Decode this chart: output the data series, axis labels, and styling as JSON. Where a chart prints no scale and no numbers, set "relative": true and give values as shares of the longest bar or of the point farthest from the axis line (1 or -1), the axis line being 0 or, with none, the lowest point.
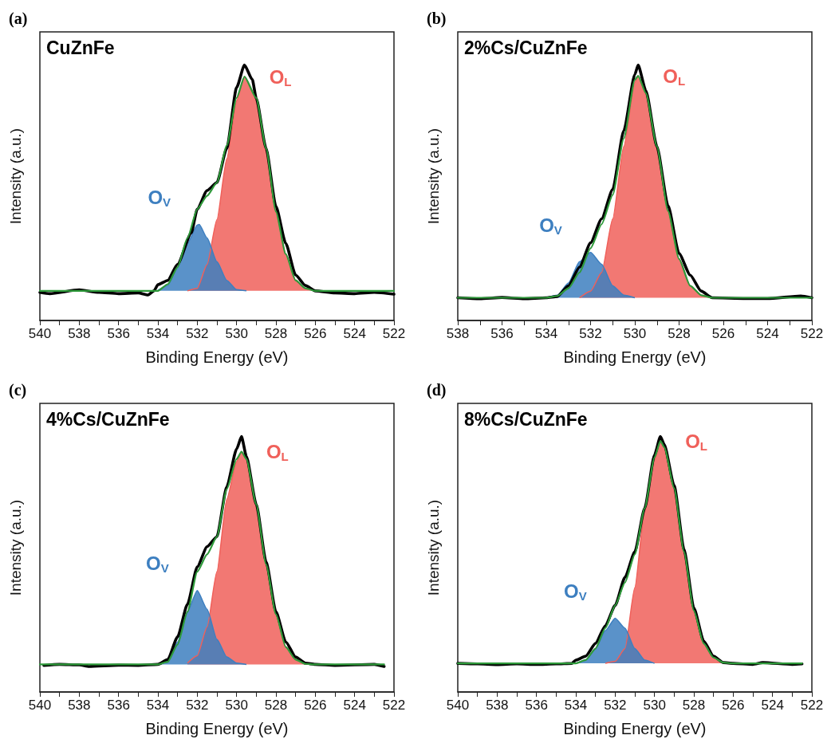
{
  "chart_data": [
    {
      "type": "line",
      "title": "(a)",
      "xlabel": "Binding Energy (eV)",
      "ylabel": "Intensity (a.u.)",
      "relative": true,
      "marker": "none",
      "line_style": "solid",
      "grid": false,
      "xlim": [
        540,
        522
      ],
      "xticks": [
        540,
        {
          "value": 539,
          "label": null
        },
        538,
        {
          "value": 537,
          "label": null
        },
        536,
        {
          "value": 535,
          "label": null
        },
        534,
        {
          "value": 533,
          "label": null
        },
        532,
        {
          "value": 531,
          "label": null
        },
        530,
        {
          "value": 529,
          "label": null
        },
        528,
        {
          "value": 527,
          "label": null
        },
        526,
        {
          "value": 525,
          "label": null
        },
        524,
        {
          "value": 523,
          "label": null
        },
        522
      ],
      "annotations": [
        "CuZnFe"
      ],
      "series": [
        {
          "type": "area",
          "name": "O$_{L}$",
          "color": "#f0605a",
          "x": [
            532.5,
            532,
            531.5,
            531,
            530.5,
            530,
            529.6,
            529,
            528.5,
            528,
            527.5,
            527,
            526.5,
            526
          ],
          "values": [
            0.116,
            0.126,
            0.219,
            0.395,
            0.633,
            0.86,
            0.955,
            0.871,
            0.674,
            0.426,
            0.26,
            0.157,
            0.126,
            0.116
          ]
        },
        {
          "type": "area",
          "name": "O$_{V}$",
          "color": "#3d7fc0",
          "x": [
            534,
            533.5,
            533,
            532.5,
            532,
            531.9,
            531.5,
            531,
            530.5,
            530,
            529.5
          ],
          "values": [
            0.118,
            0.137,
            0.209,
            0.302,
            0.374,
            0.376,
            0.323,
            0.23,
            0.157,
            0.121,
            0.116
          ]
        },
        {
          "type": "line",
          "color": "#000000",
          "x": [
            540,
            539.5,
            538,
            537,
            536,
            535,
            534.5,
            534.2,
            534,
            533.5,
            533,
            532.3,
            532,
            531.5,
            531,
            530.5,
            530,
            529.6,
            529.2,
            529,
            528.5,
            528,
            527.5,
            527,
            526.5,
            526,
            525,
            524,
            523,
            522
          ],
          "values": [
            0.11,
            0.105,
            0.12,
            0.11,
            0.105,
            0.108,
            0.1,
            0.116,
            0.14,
            0.157,
            0.22,
            0.343,
            0.436,
            0.509,
            0.54,
            0.674,
            0.912,
            1.0,
            0.943,
            0.87,
            0.674,
            0.447,
            0.302,
            0.178,
            0.137,
            0.116,
            0.108,
            0.105,
            0.11,
            0.103
          ]
        },
        {
          "type": "line",
          "color": "#2e9a3a",
          "x": [
            540,
            534,
            533.5,
            533,
            532.5,
            532,
            531.5,
            531,
            530.5,
            530,
            529.6,
            529,
            528.5,
            528,
            527.5,
            527,
            526.5,
            526,
            522
          ],
          "values": [
            0.116,
            0.116,
            0.142,
            0.209,
            0.323,
            0.436,
            0.488,
            0.54,
            0.685,
            0.871,
            0.955,
            0.871,
            0.674,
            0.426,
            0.26,
            0.157,
            0.126,
            0.116,
            0.116
          ]
        }
      ]
    },
    {
      "type": "line",
      "title": "(b)",
      "xlabel": "Binding Energy (eV)",
      "ylabel": "Intensity (a.u.)",
      "relative": true,
      "marker": "none",
      "line_style": "solid",
      "grid": false,
      "xlim": [
        538,
        522
      ],
      "xticks": [
        538,
        {
          "value": 537,
          "label": null
        },
        536,
        {
          "value": 535,
          "label": null
        },
        534,
        {
          "value": 533,
          "label": null
        },
        532,
        {
          "value": 531,
          "label": null
        },
        530,
        {
          "value": 529,
          "label": null
        },
        528,
        {
          "value": 527,
          "label": null
        },
        526,
        {
          "value": 525,
          "label": null
        },
        524,
        {
          "value": 523,
          "label": null
        },
        522
      ],
      "annotations": [
        "2%Cs/CuZnFe"
      ],
      "series": [
        {
          "type": "area",
          "name": "O$_{L}$",
          "color": "#f0605a",
          "x": [
            532.5,
            532,
            531.5,
            531,
            530.5,
            530,
            529.85,
            529.5,
            529,
            528.5,
            528,
            527.5,
            527,
            526.5
          ],
          "values": [
            0.089,
            0.115,
            0.188,
            0.398,
            0.681,
            0.932,
            0.958,
            0.89,
            0.681,
            0.429,
            0.241,
            0.136,
            0.099,
            0.089
          ]
        },
        {
          "type": "area",
          "name": "O$_{V}$",
          "color": "#3d7fc0",
          "x": [
            534,
            533.5,
            533,
            532.5,
            532,
            531.5,
            531,
            530.5,
            530
          ],
          "values": [
            0.089,
            0.099,
            0.147,
            0.23,
            0.267,
            0.22,
            0.136,
            0.099,
            0.089
          ]
        },
        {
          "type": "line",
          "color": "#000000",
          "x": [
            538,
            537,
            536,
            535,
            534,
            533.5,
            533,
            532.5,
            532,
            531.5,
            531,
            530.5,
            530,
            529.85,
            529.5,
            529,
            528.5,
            528,
            527.5,
            527,
            526.5,
            525,
            524,
            522.5,
            522
          ],
          "values": [
            0.089,
            0.085,
            0.09,
            0.085,
            0.089,
            0.094,
            0.136,
            0.209,
            0.304,
            0.398,
            0.513,
            0.743,
            0.963,
            1.0,
            0.9,
            0.681,
            0.45,
            0.262,
            0.178,
            0.115,
            0.089,
            0.086,
            0.086,
            0.096,
            0.089
          ]
        },
        {
          "type": "line",
          "color": "#2e9a3a",
          "x": [
            538,
            534,
            533.5,
            533,
            532.5,
            532,
            531.5,
            531,
            530.5,
            530,
            529.85,
            529.5,
            529,
            528.5,
            528,
            527.5,
            527,
            526.5,
            522
          ],
          "values": [
            0.089,
            0.089,
            0.096,
            0.126,
            0.188,
            0.283,
            0.377,
            0.492,
            0.712,
            0.942,
            0.958,
            0.89,
            0.681,
            0.429,
            0.241,
            0.136,
            0.099,
            0.089,
            0.089
          ]
        }
      ]
    },
    {
      "type": "line",
      "title": "(c)",
      "xlabel": "Binding Energy (eV)",
      "ylabel": "Intensity (a.u.)",
      "relative": true,
      "marker": "none",
      "line_style": "solid",
      "grid": false,
      "xlim": [
        540,
        522
      ],
      "xticks": [
        540,
        {
          "value": 539,
          "label": null
        },
        538,
        {
          "value": 537,
          "label": null
        },
        536,
        {
          "value": 535,
          "label": null
        },
        534,
        {
          "value": 533,
          "label": null
        },
        532,
        {
          "value": 531,
          "label": null
        },
        530,
        {
          "value": 529,
          "label": null
        },
        528,
        {
          "value": 527,
          "label": null
        },
        526,
        {
          "value": 525,
          "label": null
        },
        524,
        {
          "value": 523,
          "label": null
        },
        522
      ],
      "annotations": [
        "4%Cs/CuZnFe"
      ],
      "series": [
        {
          "type": "area",
          "name": "O$_{L}$",
          "color": "#f0605a",
          "x": [
            532.5,
            532,
            531.5,
            531,
            530.5,
            530,
            529.75,
            529.5,
            529,
            528.5,
            528,
            527.5,
            527,
            526.5,
            526
          ],
          "values": [
            0.113,
            0.142,
            0.255,
            0.471,
            0.755,
            0.902,
            0.941,
            0.912,
            0.735,
            0.5,
            0.304,
            0.176,
            0.127,
            0.11,
            0.108
          ]
        },
        {
          "type": "area",
          "name": "O$_{V}$",
          "color": "#3d7fc0",
          "x": [
            534,
            533.5,
            533,
            532.5,
            532,
            531.5,
            531,
            530.5,
            530,
            529.5
          ],
          "values": [
            0.108,
            0.127,
            0.196,
            0.314,
            0.397,
            0.324,
            0.206,
            0.137,
            0.113,
            0.108
          ]
        },
        {
          "type": "line",
          "color": "#000000",
          "x": [
            539.8,
            539,
            538,
            537.5,
            536,
            535,
            534,
            533.5,
            533,
            532.5,
            532,
            531.5,
            531,
            530.5,
            530,
            529.75,
            529.5,
            529,
            528.5,
            528,
            527.5,
            527,
            526.5,
            526,
            525,
            523,
            522.5
          ],
          "values": [
            0.104,
            0.108,
            0.106,
            0.1,
            0.105,
            0.104,
            0.108,
            0.127,
            0.216,
            0.343,
            0.49,
            0.569,
            0.608,
            0.804,
            0.951,
            1.0,
            0.922,
            0.735,
            0.51,
            0.314,
            0.196,
            0.137,
            0.113,
            0.108,
            0.104,
            0.108,
            0.1
          ]
        },
        {
          "type": "line",
          "color": "#2e9a3a",
          "x": [
            540,
            534,
            533.5,
            533,
            532.5,
            532,
            531.5,
            531,
            530.5,
            530,
            529.75,
            529.5,
            529,
            528.5,
            528,
            527.5,
            527,
            526.5,
            526,
            522.5
          ],
          "values": [
            0.108,
            0.108,
            0.118,
            0.186,
            0.314,
            0.471,
            0.539,
            0.608,
            0.794,
            0.912,
            0.941,
            0.912,
            0.735,
            0.5,
            0.304,
            0.176,
            0.127,
            0.11,
            0.108,
            0.108
          ]
        }
      ]
    },
    {
      "type": "line",
      "title": "(d)",
      "xlabel": "Binding Energy (eV)",
      "ylabel": "Intensity (a.u.)",
      "relative": true,
      "marker": "none",
      "line_style": "solid",
      "grid": false,
      "xlim": [
        540,
        522
      ],
      "xticks": [
        540,
        {
          "value": 539,
          "label": null
        },
        538,
        {
          "value": 537,
          "label": null
        },
        536,
        {
          "value": 535,
          "label": null
        },
        534,
        {
          "value": 533,
          "label": null
        },
        532,
        {
          "value": 531,
          "label": null
        },
        530,
        {
          "value": 529,
          "label": null
        },
        528,
        {
          "value": 527,
          "label": null
        },
        526,
        {
          "value": 525,
          "label": null
        },
        524,
        {
          "value": 523,
          "label": null
        },
        522
      ],
      "annotations": [
        "8%Cs/CuZnFe"
      ],
      "series": [
        {
          "type": "area",
          "name": "O$_{L}$",
          "color": "#f0605a",
          "x": [
            532.5,
            532,
            531.5,
            531,
            530.5,
            530,
            529.7,
            529.5,
            529,
            528.5,
            528,
            527.5,
            527,
            526.5,
            526
          ],
          "values": [
            0.112,
            0.12,
            0.17,
            0.409,
            0.709,
            0.908,
            0.983,
            0.958,
            0.798,
            0.549,
            0.319,
            0.19,
            0.135,
            0.115,
            0.112
          ]
        },
        {
          "type": "area",
          "name": "O$_{V}$",
          "color": "#3d7fc0",
          "x": [
            534,
            533.5,
            533,
            532.5,
            532,
            531.5,
            531,
            530.5,
            530
          ],
          "values": [
            0.112,
            0.125,
            0.17,
            0.24,
            0.289,
            0.25,
            0.17,
            0.125,
            0.112
          ]
        },
        {
          "type": "line",
          "color": "#000000",
          "x": [
            540,
            539,
            538,
            537,
            536,
            535,
            534.2,
            534,
            533.5,
            533,
            532.5,
            532,
            531.5,
            531,
            530.5,
            530,
            529.7,
            529.5,
            529,
            528.5,
            528,
            527.5,
            527,
            526.5,
            526,
            525,
            524.5,
            523,
            522.5
          ],
          "values": [
            0.112,
            0.11,
            0.107,
            0.11,
            0.108,
            0.11,
            0.112,
            0.125,
            0.14,
            0.19,
            0.259,
            0.339,
            0.449,
            0.549,
            0.719,
            0.928,
            1.0,
            0.968,
            0.808,
            0.559,
            0.329,
            0.2,
            0.14,
            0.115,
            0.112,
            0.108,
            0.115,
            0.108,
            0.11
          ]
        },
        {
          "type": "line",
          "color": "#2e9a3a",
          "x": [
            540,
            534,
            533.5,
            533,
            532.5,
            532,
            531.5,
            531,
            530.5,
            530,
            529.7,
            529.5,
            529,
            528.5,
            528,
            527.5,
            527,
            526.5,
            526,
            522.5
          ],
          "values": [
            0.112,
            0.112,
            0.125,
            0.17,
            0.25,
            0.339,
            0.429,
            0.539,
            0.719,
            0.918,
            0.983,
            0.958,
            0.798,
            0.549,
            0.319,
            0.19,
            0.135,
            0.115,
            0.112,
            0.112
          ]
        }
      ]
    }
  ]
}
